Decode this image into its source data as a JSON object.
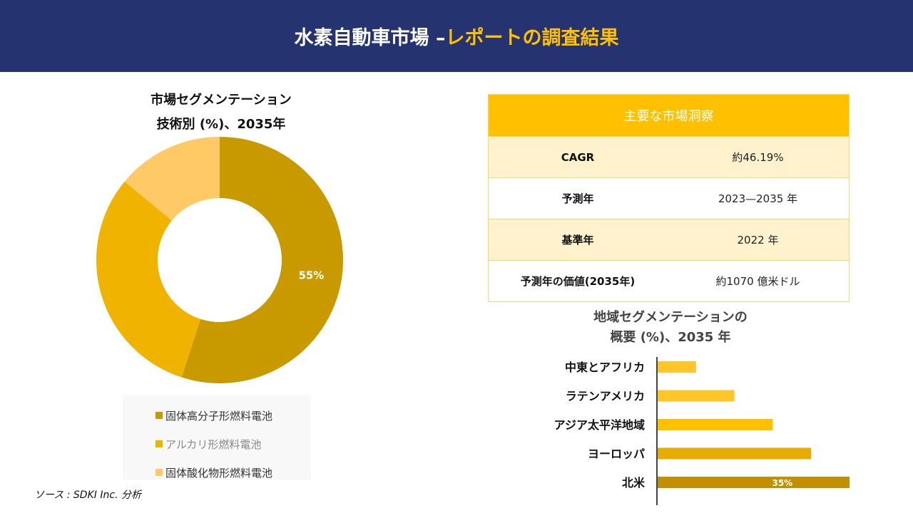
{
  "header": {
    "title_main": "水素自動車市場 –",
    "title_highlight": "レポートの調査結果"
  },
  "pie": {
    "title_line1": "市場セグメンテーション",
    "title_line2": "技術別 (%)、2035年"
  },
  "source": "ソース : SDKI Inc. 分析",
  "insights": {
    "title": "主要な市場洞察",
    "rows": [
      {
        "key": "CAGR",
        "value": "約46.19%"
      },
      {
        "key": "予測年",
        "value": "2023—2035 年"
      },
      {
        "key": "基準年",
        "value": "2022 年"
      },
      {
        "key": "予測年の価値(2035年)",
        "value": "約1070 億米ドル"
      }
    ]
  },
  "bar": {
    "title_line1": "地域セグメンテーションの",
    "title_line2": "概要 (%)、2035 年"
  },
  "chart_data": [
    {
      "type": "pie",
      "title": "市場セグメンテーション 技術別 (%)、2035年",
      "donut": true,
      "categories": [
        "固体高分子形燃料電池",
        "アルカリ形燃料電池",
        "固体酸化物形燃料電池"
      ],
      "values": [
        55,
        31,
        14
      ],
      "colors": [
        "#C89A00",
        "#F0B400",
        "#FFC966"
      ],
      "data_labels": [
        "55%",
        "",
        ""
      ],
      "legend": "bottom"
    },
    {
      "type": "bar",
      "orientation": "horizontal",
      "title": "地域セグメンテーションの概要 (%)、2035 年",
      "categories": [
        "中東とアフリカ",
        "ラテンアメリカ",
        "アジア太平洋地域",
        "ヨーロッパ",
        "北米"
      ],
      "values": [
        7,
        14,
        21,
        28,
        35
      ],
      "colors": [
        "#FFC629",
        "#FFC629",
        "#FFC000",
        "#E6AC00",
        "#C09000"
      ],
      "data_labels": [
        "",
        "",
        "",
        "",
        "35%"
      ],
      "xlim": [
        0,
        35
      ]
    }
  ]
}
